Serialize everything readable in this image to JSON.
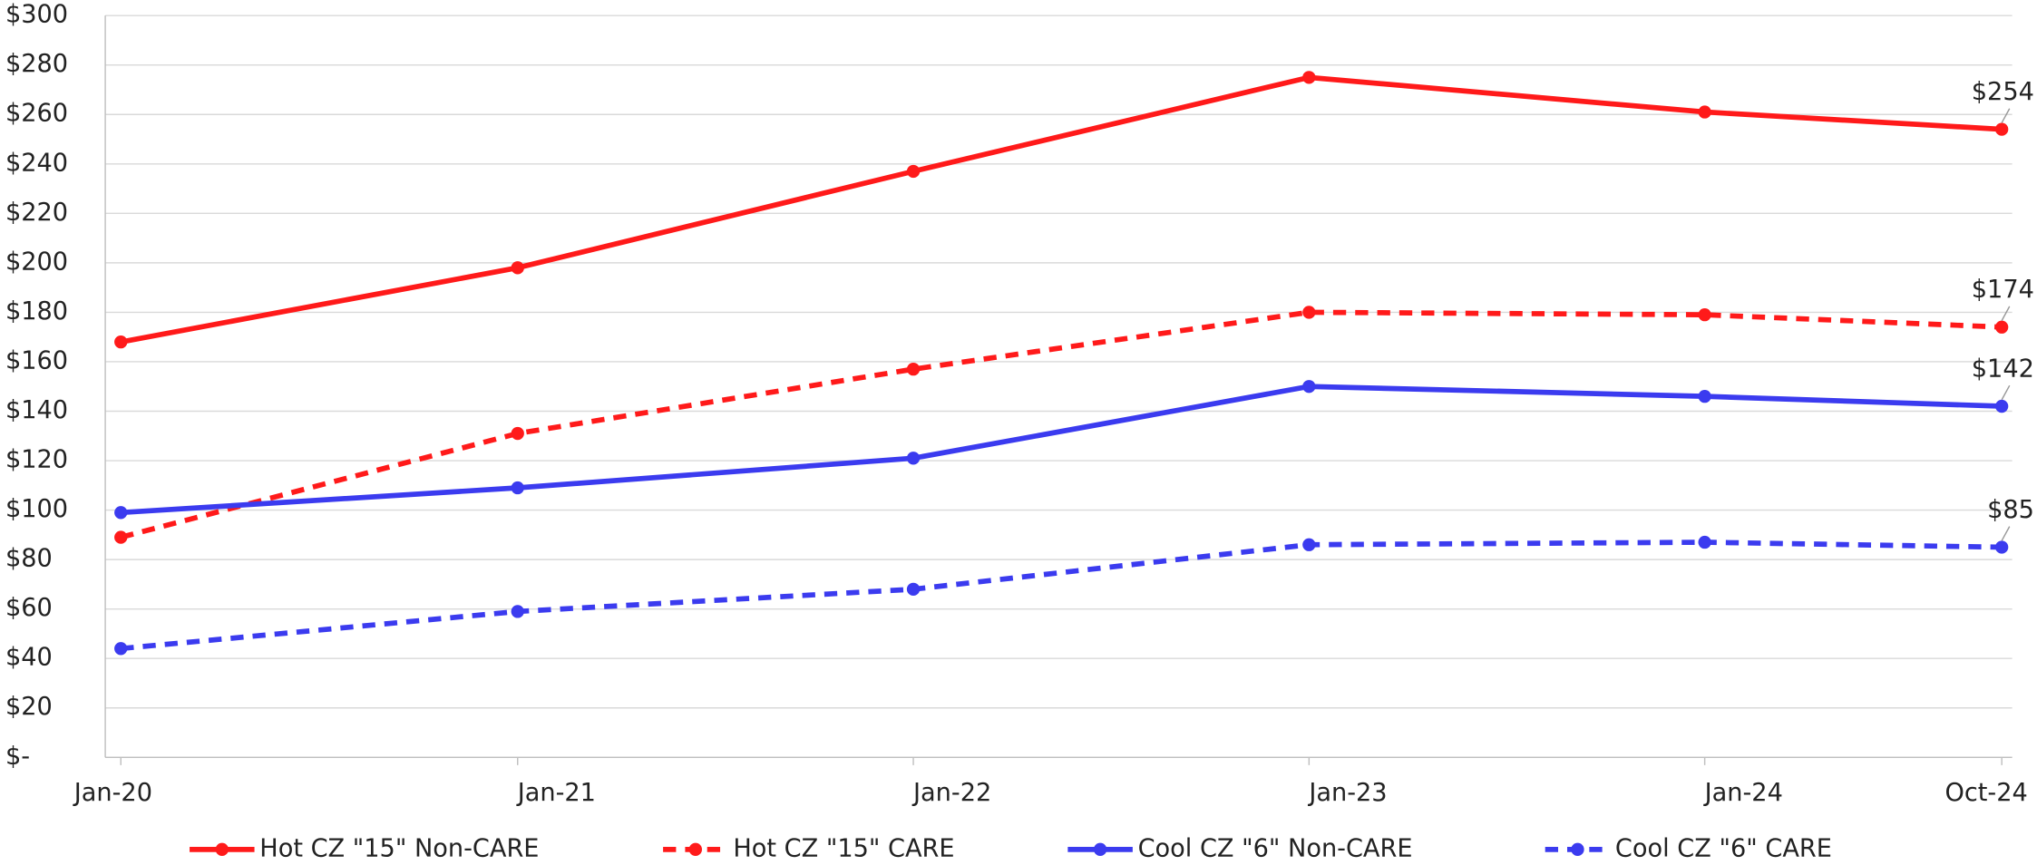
{
  "chart_data": {
    "type": "line",
    "x": [
      "Jan-20",
      "Jan-21",
      "Jan-22",
      "Jan-23",
      "Jan-24",
      "Oct-24"
    ],
    "ylim": [
      0,
      300
    ],
    "yticks": [
      {
        "value": 0,
        "label": "$-"
      },
      {
        "value": 20,
        "label": "$20"
      },
      {
        "value": 40,
        "label": "$40"
      },
      {
        "value": 60,
        "label": "$60"
      },
      {
        "value": 80,
        "label": "$80"
      },
      {
        "value": 100,
        "label": "$100"
      },
      {
        "value": 120,
        "label": "$120"
      },
      {
        "value": 140,
        "label": "$140"
      },
      {
        "value": 160,
        "label": "$160"
      },
      {
        "value": 180,
        "label": "$180"
      },
      {
        "value": 200,
        "label": "$200"
      },
      {
        "value": 220,
        "label": "$220"
      },
      {
        "value": 240,
        "label": "$240"
      },
      {
        "value": 260,
        "label": "$260"
      },
      {
        "value": 280,
        "label": "$280"
      },
      {
        "value": 300,
        "label": "$300"
      }
    ],
    "grid": true,
    "legend": "bottom",
    "series": [
      {
        "name": "Hot CZ \"15\" Non-CARE",
        "color": "#ff1a1a",
        "style": "solid",
        "values": [
          168,
          198,
          237,
          275,
          261,
          254
        ],
        "value_labels": [
          null,
          null,
          null,
          null,
          null,
          "$254"
        ]
      },
      {
        "name": "Hot CZ \"15\" CARE",
        "color": "#ff1a1a",
        "style": "dashed",
        "values": [
          89,
          131,
          157,
          180,
          179,
          174
        ],
        "value_labels": [
          null,
          null,
          null,
          null,
          null,
          "$174"
        ]
      },
      {
        "name": "Cool CZ \"6\" Non-CARE",
        "color": "#3b3bef",
        "style": "solid",
        "values": [
          99,
          109,
          121,
          150,
          146,
          142
        ],
        "value_labels": [
          null,
          null,
          null,
          null,
          null,
          "$142"
        ]
      },
      {
        "name": "Cool CZ \"6\" CARE",
        "color": "#3b3bef",
        "style": "dashed",
        "values": [
          44,
          59,
          68,
          86,
          87,
          85
        ],
        "value_labels": [
          null,
          null,
          null,
          null,
          null,
          "$85"
        ]
      }
    ]
  }
}
